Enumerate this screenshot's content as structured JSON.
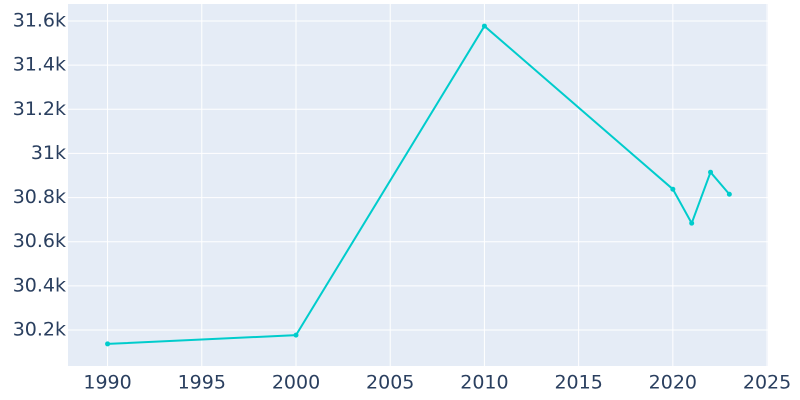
{
  "chart_data": {
    "type": "line",
    "x": [
      1990,
      2000,
      2010,
      2020,
      2021,
      2022,
      2023
    ],
    "series": [
      {
        "color": "#00cccc",
        "values": [
          30137,
          30177,
          31577,
          30838,
          30684,
          30915,
          30815
        ]
      }
    ],
    "xlim": [
      1987.9,
      2025.05
    ],
    "ylim": [
      30037,
      31677
    ],
    "xticks": [
      1990,
      1995,
      2000,
      2005,
      2010,
      2015,
      2020,
      2025
    ],
    "yticks": [
      {
        "value": 30200,
        "label": "30.2k"
      },
      {
        "value": 30400,
        "label": "30.4k"
      },
      {
        "value": 30600,
        "label": "30.6k"
      },
      {
        "value": 30800,
        "label": "30.8k"
      },
      {
        "value": 31000,
        "label": "31k"
      },
      {
        "value": 31200,
        "label": "31.2k"
      },
      {
        "value": 31400,
        "label": "31.4k"
      },
      {
        "value": 31600,
        "label": "31.6k"
      }
    ],
    "grid": true
  }
}
